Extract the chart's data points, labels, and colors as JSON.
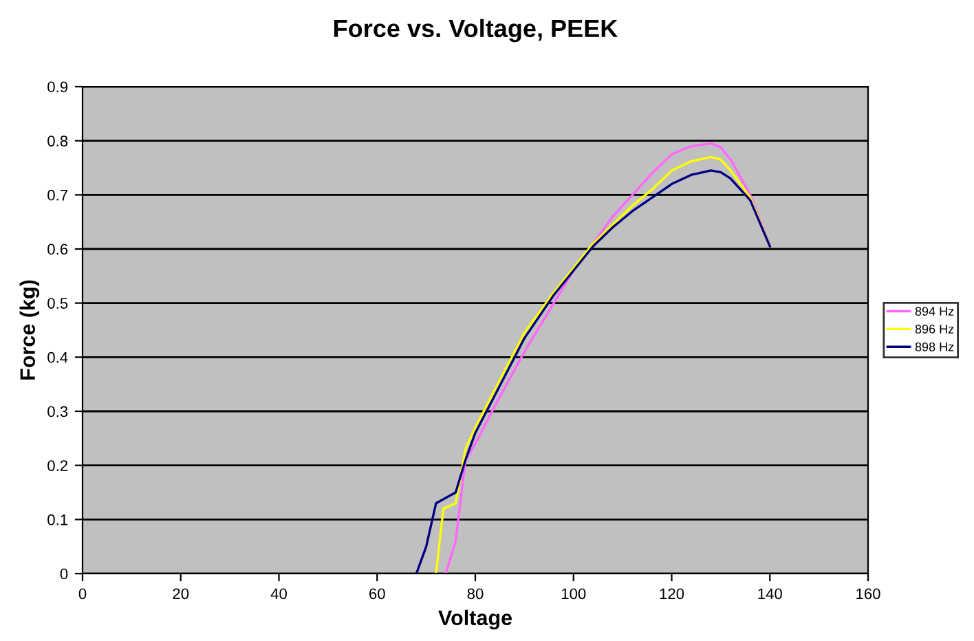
{
  "chart_data": {
    "type": "line",
    "title": "Force vs. Voltage, PEEK",
    "xlabel": "Voltage",
    "ylabel": "Force (kg)",
    "xlim": [
      0,
      160
    ],
    "xticks": [
      0,
      20,
      40,
      60,
      80,
      100,
      120,
      140,
      160
    ],
    "ylim": [
      0,
      0.9
    ],
    "yticks": [
      0,
      0.1,
      0.2,
      0.3,
      0.4,
      0.5,
      0.6,
      0.7,
      0.8,
      0.9
    ],
    "grid": "y",
    "legend": "right",
    "marker": "none",
    "line_style": "solid",
    "series": [
      {
        "name": "894 Hz",
        "color": "#ff66ff",
        "x": [
          74,
          76,
          78,
          80,
          84,
          90,
          96,
          100,
          104,
          108,
          112,
          116,
          120,
          124,
          128,
          130,
          132,
          136,
          140
        ],
        "values": [
          0,
          0.06,
          0.21,
          0.24,
          0.31,
          0.41,
          0.5,
          0.56,
          0.61,
          0.66,
          0.7,
          0.74,
          0.775,
          0.79,
          0.795,
          0.788,
          0.765,
          0.7,
          0.605
        ]
      },
      {
        "name": "896 Hz",
        "color": "#ffff00",
        "x": [
          72,
          73.5,
          76,
          78,
          80,
          84,
          90,
          96,
          100,
          104,
          108,
          112,
          116,
          120,
          124,
          128,
          130,
          132,
          136,
          140
        ],
        "values": [
          0,
          0.12,
          0.13,
          0.23,
          0.27,
          0.34,
          0.445,
          0.52,
          0.565,
          0.61,
          0.645,
          0.68,
          0.71,
          0.745,
          0.762,
          0.77,
          0.765,
          0.745,
          0.695,
          0.605
        ]
      },
      {
        "name": "898 Hz",
        "color": "#000080",
        "x": [
          68,
          70,
          72,
          76,
          78,
          80,
          84,
          90,
          96,
          100,
          104,
          108,
          112,
          116,
          120,
          124,
          128,
          130,
          132,
          136,
          140
        ],
        "values": [
          0,
          0.05,
          0.13,
          0.15,
          0.21,
          0.26,
          0.33,
          0.435,
          0.515,
          0.56,
          0.605,
          0.64,
          0.67,
          0.695,
          0.72,
          0.737,
          0.745,
          0.742,
          0.73,
          0.69,
          0.605
        ]
      }
    ]
  }
}
